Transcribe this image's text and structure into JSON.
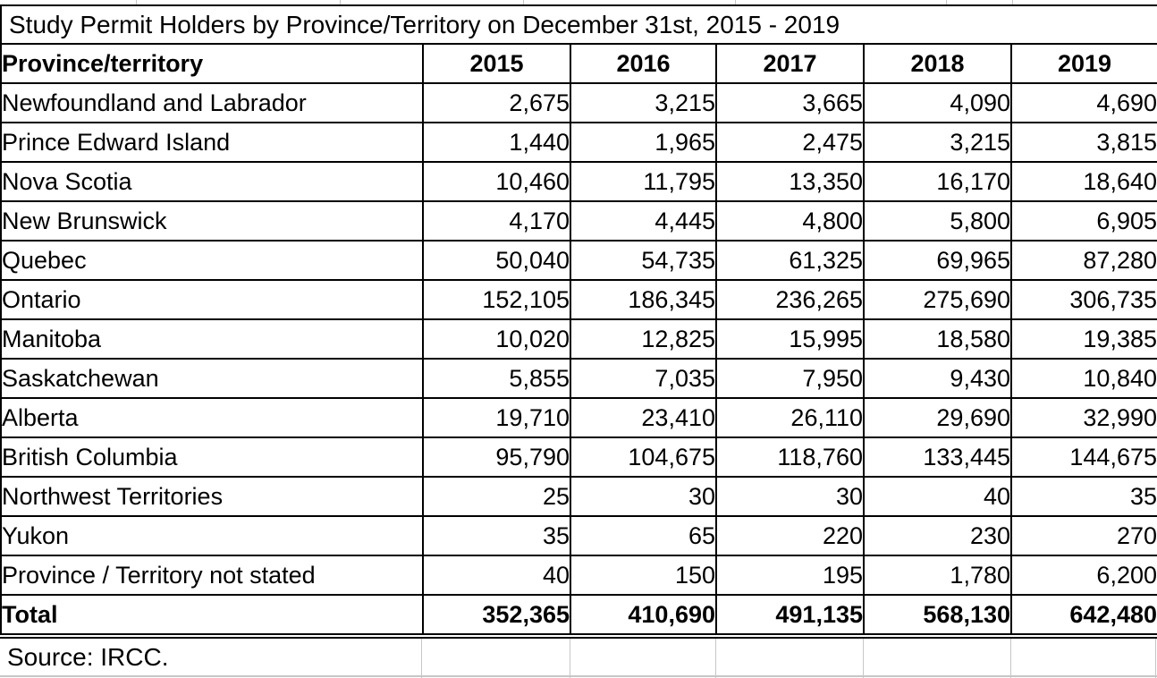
{
  "title": "Study Permit Holders by Province/Territory on December 31st, 2015 - 2019",
  "source": "Source: IRCC.",
  "colors": {
    "text": "#000000",
    "table_border": "#000000",
    "sheet_gridline": "#c6c6c6",
    "background": "#ffffff"
  },
  "table": {
    "header": [
      "Province/territory",
      "2015",
      "2016",
      "2017",
      "2018",
      "2019"
    ],
    "rows": [
      {
        "label": "Newfoundland and Labrador",
        "values": [
          "2,675",
          "3,215",
          "3,665",
          "4,090",
          "4,690"
        ]
      },
      {
        "label": "Prince Edward Island",
        "values": [
          "1,440",
          "1,965",
          "2,475",
          "3,215",
          "3,815"
        ]
      },
      {
        "label": "Nova Scotia",
        "values": [
          "10,460",
          "11,795",
          "13,350",
          "16,170",
          "18,640"
        ]
      },
      {
        "label": "New Brunswick",
        "values": [
          "4,170",
          "4,445",
          "4,800",
          "5,800",
          "6,905"
        ]
      },
      {
        "label": "Quebec",
        "values": [
          "50,040",
          "54,735",
          "61,325",
          "69,965",
          "87,280"
        ]
      },
      {
        "label": "Ontario",
        "values": [
          "152,105",
          "186,345",
          "236,265",
          "275,690",
          "306,735"
        ]
      },
      {
        "label": "Manitoba",
        "values": [
          "10,020",
          "12,825",
          "15,995",
          "18,580",
          "19,385"
        ]
      },
      {
        "label": "Saskatchewan",
        "values": [
          "5,855",
          "7,035",
          "7,950",
          "9,430",
          "10,840"
        ]
      },
      {
        "label": "Alberta",
        "values": [
          "19,710",
          "23,410",
          "26,110",
          "29,690",
          "32,990"
        ]
      },
      {
        "label": "British Columbia",
        "values": [
          "95,790",
          "104,675",
          "118,760",
          "133,445",
          "144,675"
        ]
      },
      {
        "label": "Northwest Territories",
        "values": [
          "25",
          "30",
          "30",
          "40",
          "35"
        ]
      },
      {
        "label": "Yukon",
        "values": [
          "35",
          "65",
          "220",
          "230",
          "270"
        ]
      },
      {
        "label": "Province / Territory not stated",
        "values": [
          "40",
          "150",
          "195",
          "1,780",
          "6,200"
        ]
      }
    ],
    "total": {
      "label": "Total",
      "values": [
        "352,365",
        "410,690",
        "491,135",
        "568,130",
        "642,480"
      ]
    }
  },
  "chart_data": {
    "type": "table",
    "title": "Study Permit Holders by Province/Territory on December 31st, 2015 - 2019",
    "columns": [
      "Province/territory",
      "2015",
      "2016",
      "2017",
      "2018",
      "2019"
    ],
    "rows": [
      [
        "Newfoundland and Labrador",
        2675,
        3215,
        3665,
        4090,
        4690
      ],
      [
        "Prince Edward Island",
        1440,
        1965,
        2475,
        3215,
        3815
      ],
      [
        "Nova Scotia",
        10460,
        11795,
        13350,
        16170,
        18640
      ],
      [
        "New Brunswick",
        4170,
        4445,
        4800,
        5800,
        6905
      ],
      [
        "Quebec",
        50040,
        54735,
        61325,
        69965,
        87280
      ],
      [
        "Ontario",
        152105,
        186345,
        236265,
        275690,
        306735
      ],
      [
        "Manitoba",
        10020,
        12825,
        15995,
        18580,
        19385
      ],
      [
        "Saskatchewan",
        5855,
        7035,
        7950,
        9430,
        10840
      ],
      [
        "Alberta",
        19710,
        23410,
        26110,
        29690,
        32990
      ],
      [
        "British Columbia",
        95790,
        104675,
        118760,
        133445,
        144675
      ],
      [
        "Northwest Territories",
        25,
        30,
        30,
        40,
        35
      ],
      [
        "Yukon",
        35,
        65,
        220,
        230,
        270
      ],
      [
        "Province / Territory not stated",
        40,
        150,
        195,
        1780,
        6200
      ]
    ],
    "total_row": [
      "Total",
      352365,
      410690,
      491135,
      568130,
      642480
    ],
    "source": "Source: IRCC."
  }
}
